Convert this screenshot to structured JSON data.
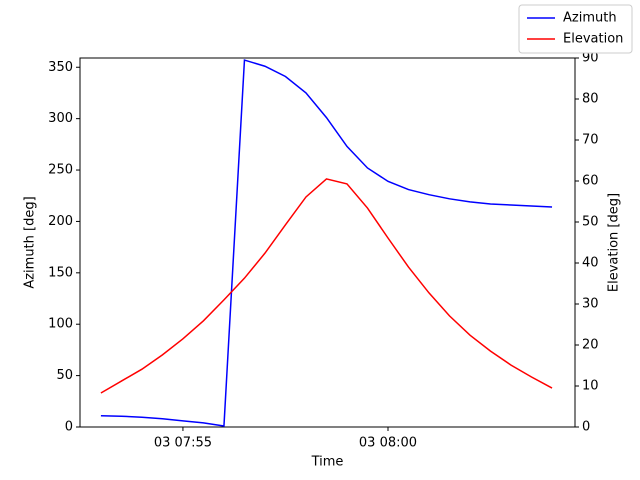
{
  "chart_data": {
    "type": "line",
    "x_label": "Time",
    "y_label": "Azimuth [deg]",
    "y2_label": "Elevation [deg]",
    "x": [
      473,
      473.5,
      474,
      474.5,
      475,
      475.5,
      476,
      476.5,
      477,
      477.5,
      478,
      478.5,
      479,
      479.5,
      480,
      480.5,
      481,
      481.5,
      482,
      482.5,
      483,
      483.5,
      484
    ],
    "xlim": [
      472.49,
      484.56
    ],
    "xticks": [
      {
        "value": 475,
        "label": "03 07:55"
      },
      {
        "value": 480,
        "label": "03 08:00"
      }
    ],
    "ylim": [
      0,
      359
    ],
    "yticks": [
      0,
      50,
      100,
      150,
      200,
      250,
      300,
      350
    ],
    "y2lim": [
      0,
      90
    ],
    "y2ticks": [
      0,
      10,
      20,
      30,
      40,
      50,
      60,
      70,
      80,
      90
    ],
    "legend": "upper right",
    "series": [
      {
        "name": "Azimuth",
        "color": "#0000ff",
        "values": [
          11,
          10.5,
          9.5,
          8,
          6,
          4,
          1,
          357,
          351,
          341,
          325,
          301,
          273,
          252,
          239,
          231,
          226,
          222,
          219,
          217,
          216,
          215,
          214
        ]
      },
      {
        "name": "Elevation",
        "color": "#ff0000",
        "axis": "y2",
        "values": [
          8.3,
          11.2,
          14.1,
          17.6,
          21.5,
          25.9,
          31.0,
          36.3,
          42.4,
          49.3,
          56.1,
          60.5,
          59.3,
          53.4,
          46.1,
          39.0,
          32.7,
          27.1,
          22.4,
          18.5,
          15.1,
          12.2,
          9.5
        ]
      }
    ]
  }
}
